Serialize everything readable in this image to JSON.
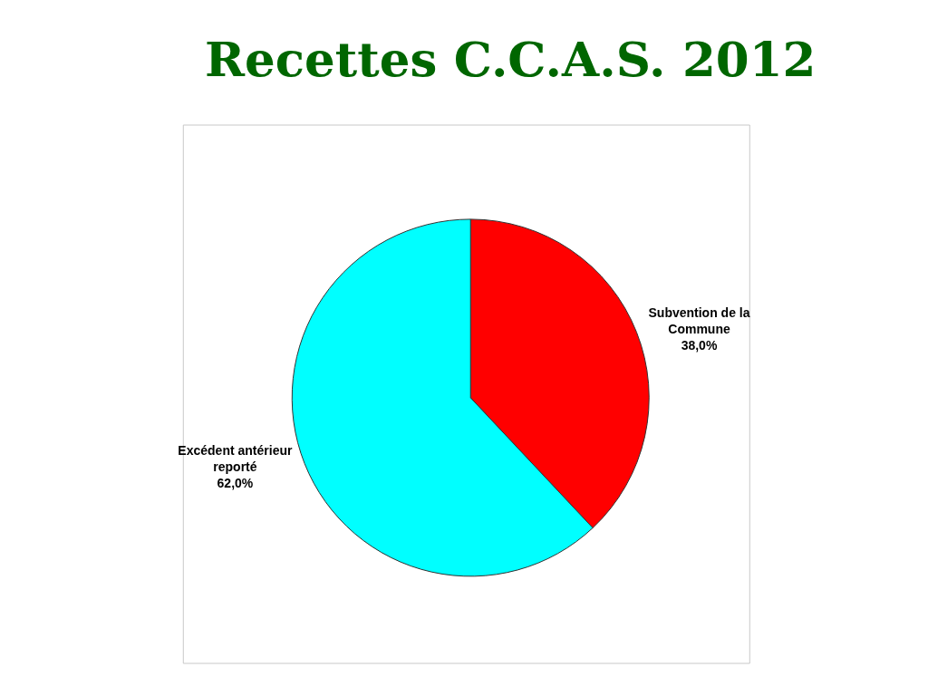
{
  "chart_data": {
    "type": "pie",
    "title": "Recettes C.C.A.S. 2012",
    "categories": [
      "Subvention de la Commune",
      "Excédent antérieur reporté"
    ],
    "values": [
      38,
      62
    ],
    "colors": [
      "#ff0000",
      "#00ffff"
    ],
    "value_labels": [
      "38,0%",
      "62,0%"
    ],
    "legend": false
  }
}
